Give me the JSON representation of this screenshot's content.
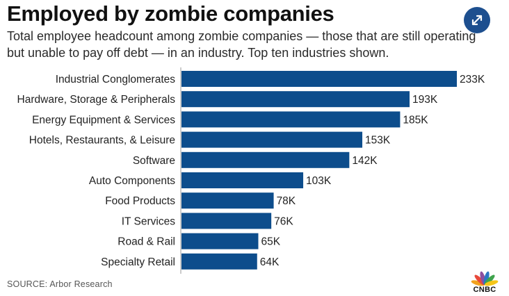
{
  "header": {
    "title": "Employed by zombie companies",
    "subtitle": "Total employee headcount among zombie companies — those that are still operating but unable to pay off debt — in an industry. Top ten industries shown."
  },
  "expand_button": {
    "icon": "expand-arrows-icon"
  },
  "footer": {
    "source": "SOURCE: Arbor Research",
    "logo_text": "CNBC"
  },
  "colors": {
    "bar": "#0d4d8c",
    "accent": "#1d4f8f"
  },
  "chart_data": {
    "type": "bar",
    "orientation": "horizontal",
    "categories": [
      "Industrial Conglomerates",
      "Hardware, Storage & Peripherals",
      "Energy Equipment & Services",
      "Hotels, Restaurants, & Leisure",
      "Software",
      "Auto Components",
      "Food Products",
      "IT Services",
      "Road & Rail",
      "Specialty Retail"
    ],
    "values": [
      233,
      193,
      185,
      153,
      142,
      103,
      78,
      76,
      65,
      64
    ],
    "value_labels": [
      "233K",
      "193K",
      "185K",
      "153K",
      "142K",
      "103K",
      "78K",
      "76K",
      "65K",
      "64K"
    ],
    "xlim": [
      0,
      250
    ],
    "grid": false,
    "legend": "none"
  }
}
